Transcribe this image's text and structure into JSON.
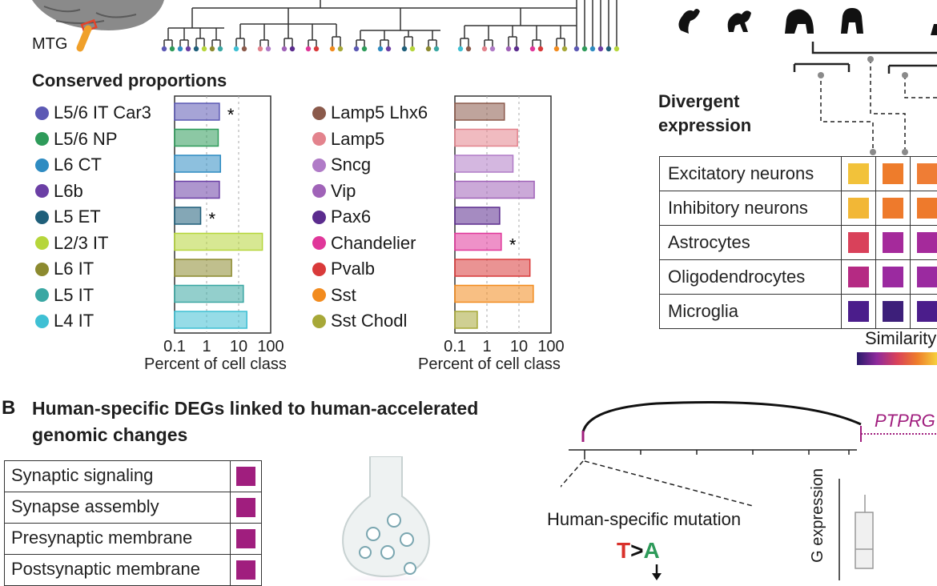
{
  "colors": {
    "bar_stroke_default": "#6b6b6b",
    "heat_yellow": "#f2c23a",
    "heat_orange": "#ee7c2b",
    "heat_magenta": "#a01e7e",
    "term_magenta": "#a01e7e"
  },
  "panelA": {
    "mtg_label": "MTG",
    "conserved_title": "Conserved proportions",
    "divergent_title_1": "Divergent",
    "divergent_title_2": "expression",
    "similarity_label": "Similarity",
    "axis_label": "Percent of cell class",
    "ticks": [
      "0.1",
      "1",
      "10",
      "100"
    ],
    "left_group": [
      {
        "name": "L5/6 IT Car3",
        "color": "#5c59b4",
        "value": 2.5,
        "star": "*"
      },
      {
        "name": "L5/6 NP",
        "color": "#2e9b5a",
        "value": 2.3,
        "star": ""
      },
      {
        "name": "L6 CT",
        "color": "#2f8cc2",
        "value": 2.7,
        "star": ""
      },
      {
        "name": "L6b",
        "color": "#6b3fa5",
        "value": 2.5,
        "star": ""
      },
      {
        "name": "L5 ET",
        "color": "#1f5f7a",
        "value": 0.65,
        "star": "*"
      },
      {
        "name": "L2/3 IT",
        "color": "#b6d63b",
        "value": 55,
        "star": ""
      },
      {
        "name": "L6 IT",
        "color": "#8c8a2f",
        "value": 6,
        "star": ""
      },
      {
        "name": "L5 IT",
        "color": "#3aa7a3",
        "value": 14,
        "star": ""
      },
      {
        "name": "L4 IT",
        "color": "#3fc0d4",
        "value": 18,
        "star": ""
      }
    ],
    "right_group": [
      {
        "name": "Lamp5 Lhx6",
        "color": "#8b5a4b",
        "value": 3.5,
        "star": ""
      },
      {
        "name": "Lamp5",
        "color": "#e3838d",
        "value": 9,
        "star": ""
      },
      {
        "name": "Sncg",
        "color": "#b07bc7",
        "value": 6.5,
        "star": ""
      },
      {
        "name": "Vip",
        "color": "#a063b8",
        "value": 30,
        "star": ""
      },
      {
        "name": "Pax6",
        "color": "#5b2c8e",
        "value": 2.5,
        "star": ""
      },
      {
        "name": "Chandelier",
        "color": "#e0379a",
        "value": 2.8,
        "star": "*"
      },
      {
        "name": "Pvalb",
        "color": "#d93a3a",
        "value": 22,
        "star": ""
      },
      {
        "name": "Sst",
        "color": "#f28b1e",
        "value": 28,
        "star": ""
      },
      {
        "name": "Sst Chodl",
        "color": "#a7a838",
        "value": 0.5,
        "star": ""
      }
    ],
    "heat_rows": [
      {
        "label": "Excitatory neurons",
        "cells": [
          "#f2c23a",
          "#ee7c2b",
          "#ef7d35"
        ]
      },
      {
        "label": "Inhibitory neurons",
        "cells": [
          "#f2b736",
          "#ee7a2c",
          "#ee7a2c"
        ]
      },
      {
        "label": "Astrocytes",
        "cells": [
          "#d9415a",
          "#a52a9b",
          "#a52a9b"
        ]
      },
      {
        "label": "Oligodendrocytes",
        "cells": [
          "#b52a83",
          "#9b2aa0",
          "#9b2aa0"
        ]
      },
      {
        "label": "Microglia",
        "cells": [
          "#4b1d8b",
          "#3d1f7a",
          "#4b1d8b"
        ]
      }
    ]
  },
  "panelB": {
    "letter": "B",
    "title_1": "Human-specific DEGs linked to human-accelerated",
    "title_2": "genomic changes",
    "terms": [
      "Synaptic signaling",
      "Synapse assembly",
      "Presynaptic membrane",
      "Postsynaptic membrane"
    ],
    "gene_label": "PTPRG",
    "mutation_label": "Human-specific mutation",
    "mutation_from": "T",
    "mutation_arrow": ">",
    "mutation_to": "A",
    "expression_label": "G expression"
  }
}
